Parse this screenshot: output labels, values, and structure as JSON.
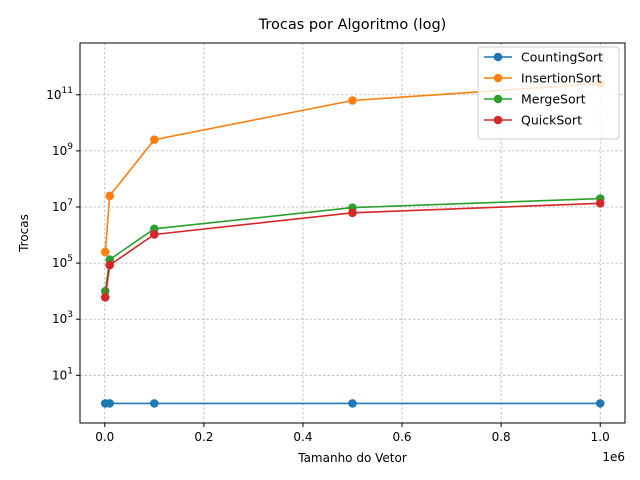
{
  "chart_data": {
    "type": "line",
    "title": "Trocas por Algoritmo (log)",
    "xlabel": "Tamanho do Vetor",
    "ylabel": "Trocas",
    "x_scale_note": "1e6",
    "x_tick_labels": [
      "0.0",
      "0.2",
      "0.4",
      "0.6",
      "0.8",
      "1.0"
    ],
    "x_ticks": [
      0,
      200000,
      400000,
      600000,
      800000,
      1000000
    ],
    "xlim": [
      -50000,
      1050000
    ],
    "y_scale": "log",
    "ylim": [
      0.2,
      7000000000000.0
    ],
    "y_ticks": [
      {
        "value": 10,
        "base": "10",
        "exp": "1"
      },
      {
        "value": 1000,
        "base": "10",
        "exp": "3"
      },
      {
        "value": 100000,
        "base": "10",
        "exp": "5"
      },
      {
        "value": 10000000,
        "base": "10",
        "exp": "7"
      },
      {
        "value": 1000000000,
        "base": "10",
        "exp": "9"
      },
      {
        "value": 100000000000,
        "base": "10",
        "exp": "11"
      }
    ],
    "grid": true,
    "legend_position": "top-right",
    "x": [
      1000,
      10000,
      100000,
      500000,
      1000000
    ],
    "series": [
      {
        "name": "CountingSort",
        "color": "#1f77b4",
        "values": [
          1,
          1,
          1,
          1,
          1
        ]
      },
      {
        "name": "InsertionSort",
        "color": "#ff7f0e",
        "values": [
          250000,
          25000000,
          2500000000,
          62500000000,
          250000000000
        ]
      },
      {
        "name": "MergeSort",
        "color": "#2ca02c",
        "values": [
          9976,
          133616,
          1668928,
          9475712,
          19951424
        ]
      },
      {
        "name": "QuickSort",
        "color": "#d62728",
        "values": [
          6000,
          85000,
          1050000,
          6200000,
          13500000
        ]
      }
    ]
  }
}
